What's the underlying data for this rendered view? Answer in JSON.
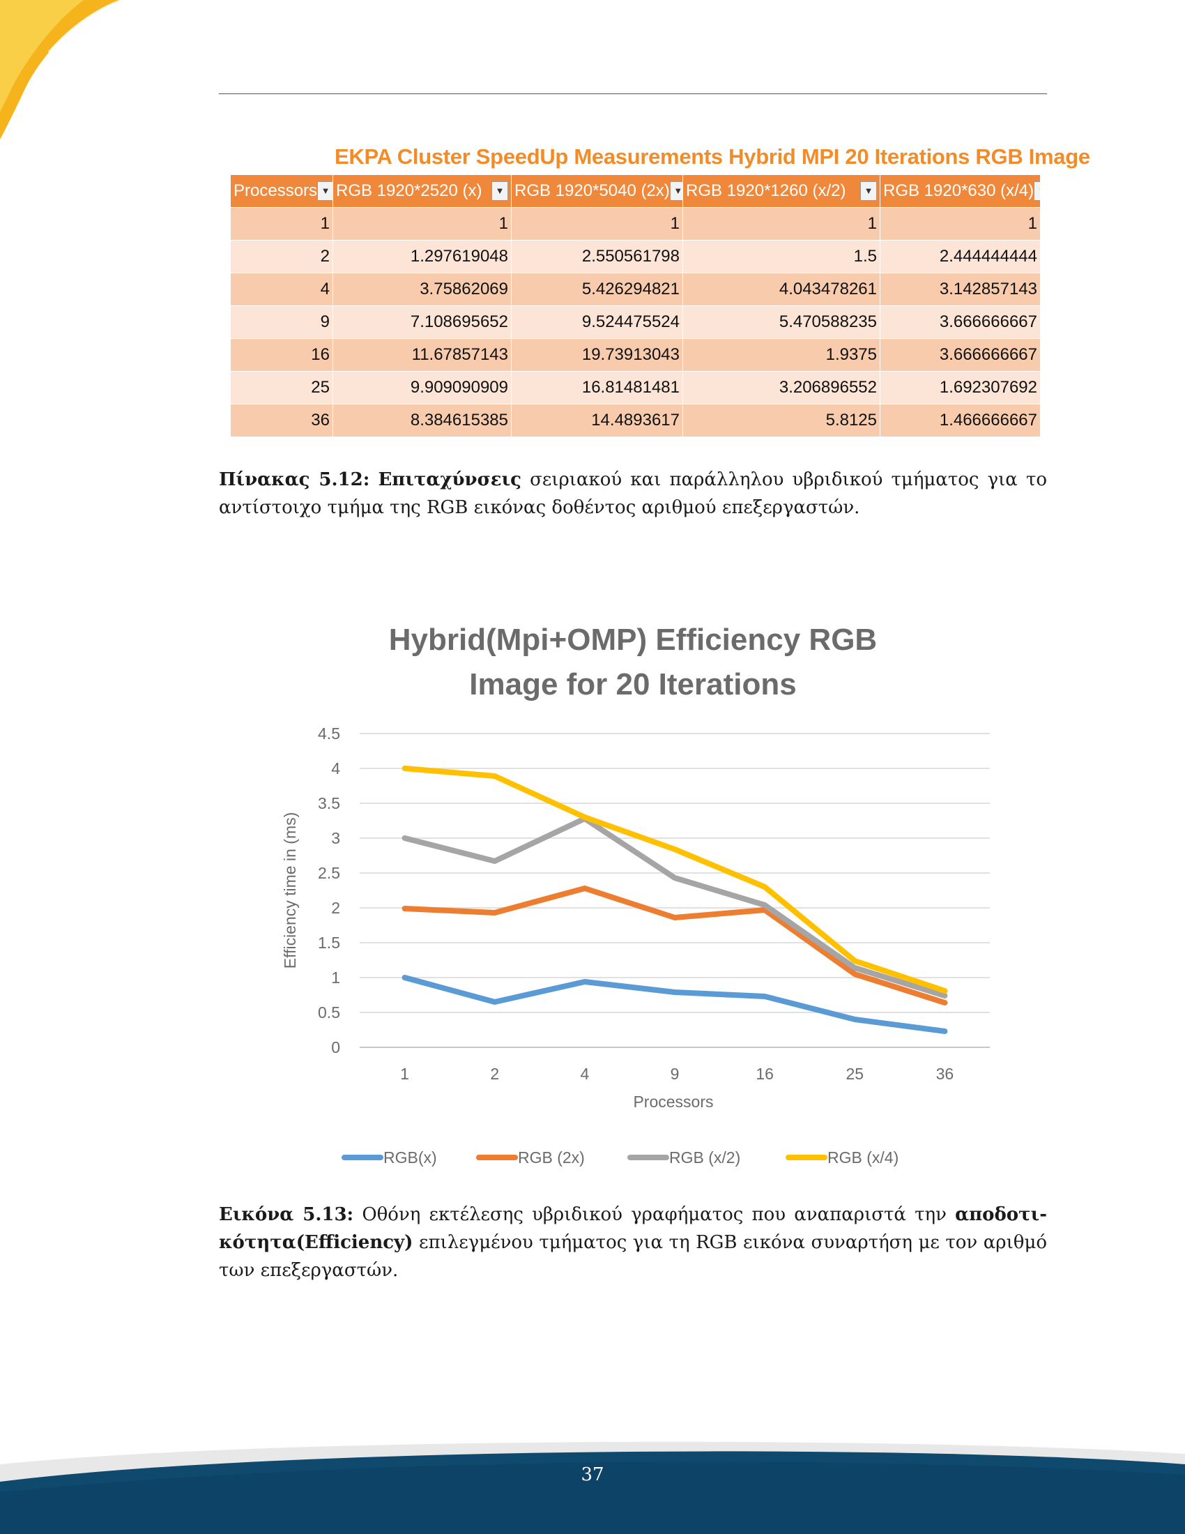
{
  "table": {
    "title": "EKPA Cluster SpeedUp Measurements Hybrid MPI  20 Iterations RGB Image",
    "headers": [
      "Processors",
      "RGB 1920*2520 (x)",
      "RGB 1920*5040 (2x)",
      "RGB 1920*1260 (x/2)",
      "RGB 1920*630 (x/4)"
    ],
    "rows": [
      [
        "1",
        "1",
        "1",
        "1",
        "1"
      ],
      [
        "2",
        "1.297619048",
        "2.550561798",
        "1.5",
        "2.444444444"
      ],
      [
        "4",
        "3.75862069",
        "5.426294821",
        "4.043478261",
        "3.142857143"
      ],
      [
        "9",
        "7.108695652",
        "9.524475524",
        "5.470588235",
        "3.666666667"
      ],
      [
        "16",
        "11.67857143",
        "19.73913043",
        "1.9375",
        "3.666666667"
      ],
      [
        "25",
        "9.909090909",
        "16.81481481",
        "3.206896552",
        "1.692307692"
      ],
      [
        "36",
        "8.384615385",
        "14.4893617",
        "5.8125",
        "1.466666667"
      ]
    ]
  },
  "table_caption": {
    "label": "Πίνακας 5.12:",
    "bold": "Επιταχύνσεις",
    "rest": " σειριακού και παράλληλου υβριδικού τμήματος για το αντίστοιχο τμήμα της RGB εικόνας δοθέντος αριθμού επεξεργαστών."
  },
  "chart_data": {
    "type": "line",
    "title": "Hybrid(Mpi+OMP) Efficiency RGB Image for 20 Iterations",
    "title_lines": [
      "Hybrid(Mpi+OMP) Efficiency RGB",
      "Image for 20 Iterations"
    ],
    "xlabel": "Processors",
    "ylabel": "Efficiency time in (ms)",
    "categories": [
      "1",
      "2",
      "4",
      "9",
      "16",
      "25",
      "36"
    ],
    "ylim": [
      0,
      4.5
    ],
    "yticks": [
      "0",
      "0.5",
      "1",
      "1.5",
      "2",
      "2.5",
      "3",
      "3.5",
      "4",
      "4.5"
    ],
    "grid": true,
    "legend": "bottom",
    "series": [
      {
        "name": "RGB(x)",
        "color": "#5B9BD5",
        "values": [
          1.0,
          0.65,
          0.94,
          0.79,
          0.73,
          0.4,
          0.23
        ]
      },
      {
        "name": "RGB (2x)",
        "color": "#ED7D31",
        "values": [
          1.99,
          1.93,
          2.28,
          1.86,
          1.97,
          1.05,
          0.64
        ]
      },
      {
        "name": "RGB (x/2)",
        "color": "#A5A5A5",
        "values": [
          3.0,
          2.67,
          3.28,
          2.43,
          2.04,
          1.14,
          0.74
        ]
      },
      {
        "name": "RGB (x/4)",
        "color": "#FFC000",
        "values": [
          4.0,
          3.89,
          3.3,
          2.84,
          2.3,
          1.24,
          0.81
        ]
      }
    ]
  },
  "figure_caption": {
    "label": "Εικόνα 5.13:",
    "pre": " Οθόνη εκτέλεσης υβριδικού γραφήματος που αναπαριστά την ",
    "bold": "αποδοτι-κότητα(Efficiency)",
    "post": " επιλεγμένου τμήματος για τη RGB εικόνα συναρτήση με τον αριθμό των επεξεργαστών."
  },
  "page_number": "37",
  "colors": {
    "brand_navy": "#0F4A6E",
    "brand_yellow": "#F5B700",
    "table_header": "#F0883B"
  }
}
